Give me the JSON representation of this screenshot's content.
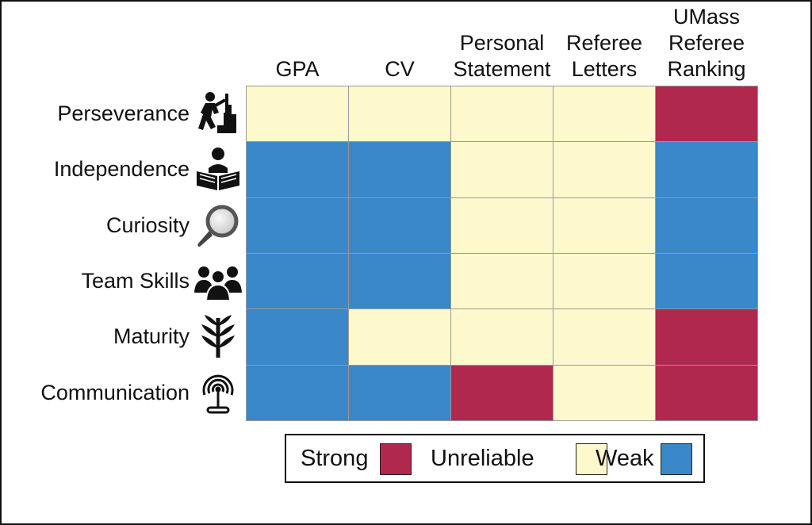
{
  "chart_data": {
    "type": "heatmap",
    "columns": [
      "GPA",
      "CV",
      "Personal\nStatement",
      "Referee\nLetters",
      "UMass\nReferee\nRanking"
    ],
    "rows": [
      "Perseverance",
      "Independence",
      "Curiosity",
      "Team Skills",
      "Maturity",
      "Communication"
    ],
    "row_icons": [
      "climbing-person-icon",
      "reading-person-icon",
      "magnifying-glass-icon",
      "team-people-icon",
      "sprout-icon",
      "broadcast-antenna-icon"
    ],
    "values": [
      [
        "Unreliable",
        "Unreliable",
        "Unreliable",
        "Unreliable",
        "Strong"
      ],
      [
        "Weak",
        "Weak",
        "Unreliable",
        "Unreliable",
        "Weak"
      ],
      [
        "Weak",
        "Weak",
        "Unreliable",
        "Unreliable",
        "Weak"
      ],
      [
        "Weak",
        "Weak",
        "Unreliable",
        "Unreliable",
        "Weak"
      ],
      [
        "Weak",
        "Unreliable",
        "Unreliable",
        "Unreliable",
        "Strong"
      ],
      [
        "Weak",
        "Weak",
        "Strong",
        "Unreliable",
        "Strong"
      ]
    ],
    "legend": [
      {
        "label": "Strong",
        "color": "#b0284e"
      },
      {
        "label": "Unreliable",
        "color": "#fdf9cd"
      },
      {
        "label": "Weak",
        "color": "#3a87c9"
      }
    ],
    "legend_position": "bottom"
  }
}
